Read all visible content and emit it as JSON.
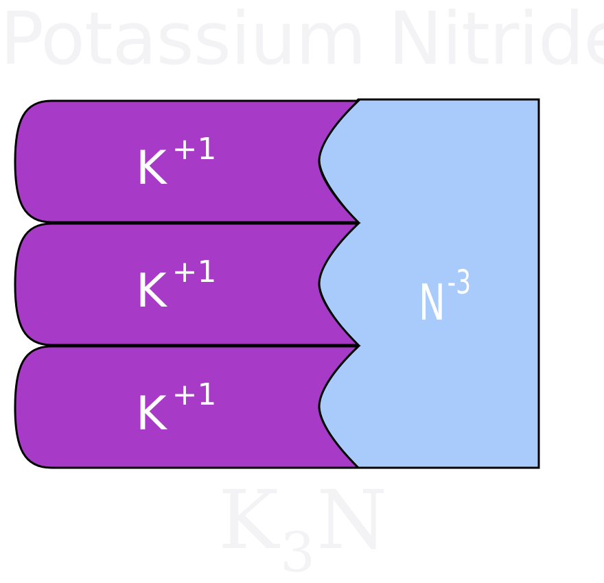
{
  "title": "Potassium Nitride",
  "cations": [
    {
      "symbol": "K",
      "charge": "+1"
    },
    {
      "symbol": "K",
      "charge": "+1"
    },
    {
      "symbol": "K",
      "charge": "+1"
    }
  ],
  "anion": {
    "symbol": "N",
    "charge": "-3"
  },
  "formula": {
    "element1": "K",
    "subscript": "3",
    "element2": "N"
  },
  "colors": {
    "cation_fill": "#a83ac8",
    "anion_fill": "#a9cbfc",
    "outline": "#000000",
    "ion_text": "#ffffff",
    "watermark_text": "#f3f3f5"
  }
}
